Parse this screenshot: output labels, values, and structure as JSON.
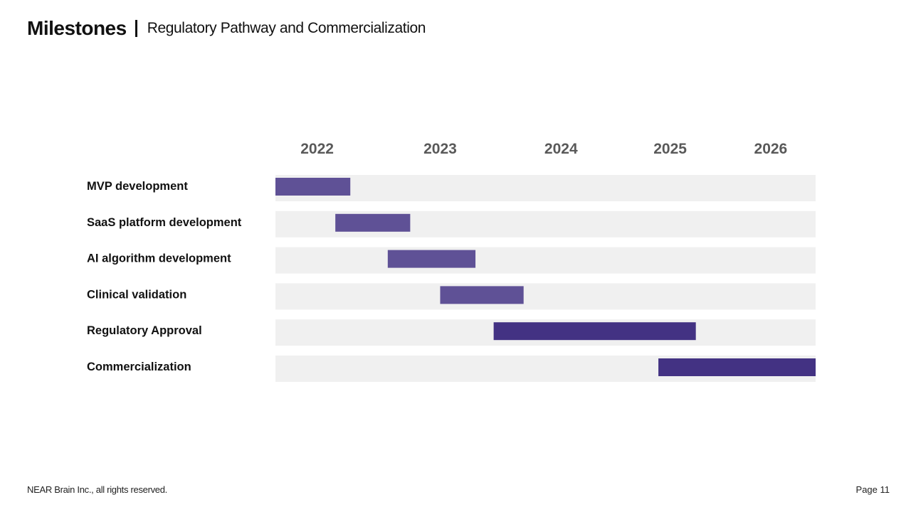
{
  "header": {
    "title": "Milestones",
    "subtitle": "Regulatory Pathway and Commercialization"
  },
  "footer": {
    "copyright": "NEAR Brain Inc., all rights reserved.",
    "page": "Page 11"
  },
  "colors": {
    "track": "#f0f0f0",
    "bar_development": "#5f5196",
    "bar_approval": "#433283",
    "year_label": "#595959",
    "task_label": "#111111"
  },
  "chart_data": {
    "type": "gantt",
    "title": "",
    "xlabel": "",
    "ylabel": "",
    "x_range": [
      2021.7,
      2026.75
    ],
    "years": [
      {
        "label": "2022",
        "pos": 2022.09
      },
      {
        "label": "2023",
        "pos": 2023.24
      },
      {
        "label": "2024",
        "pos": 2024.37
      },
      {
        "label": "2025",
        "pos": 2025.39
      },
      {
        "label": "2026",
        "pos": 2026.33
      }
    ],
    "tasks": [
      {
        "label": "MVP development",
        "start": 2021.7,
        "end": 2022.4,
        "phase": "development"
      },
      {
        "label": "SaaS platform development",
        "start": 2022.26,
        "end": 2022.96,
        "phase": "development"
      },
      {
        "label": "AI algorithm development",
        "start": 2022.75,
        "end": 2023.57,
        "phase": "development"
      },
      {
        "label": "Clinical validation",
        "start": 2023.24,
        "end": 2024.02,
        "phase": "development"
      },
      {
        "label": "Regulatory Approval",
        "start": 2023.74,
        "end": 2025.63,
        "phase": "approval"
      },
      {
        "label": "Commercialization",
        "start": 2025.28,
        "end": 2026.75,
        "phase": "approval"
      }
    ]
  }
}
